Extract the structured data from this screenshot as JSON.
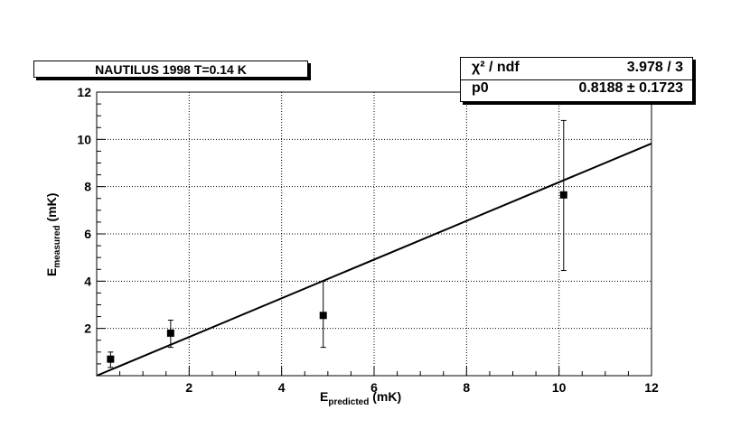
{
  "title": "NAUTILUS 1998 T=0.14 K",
  "stats": {
    "rows": [
      {
        "label": "χ² / ndf",
        "value": "3.978 / 3"
      },
      {
        "label": "p0",
        "value": "0.8188 ± 0.1723"
      }
    ]
  },
  "chart_data": {
    "type": "scatter",
    "title": "NAUTILUS 1998 T=0.14 K",
    "xlabel": {
      "main": "E",
      "sub": "predicted",
      "unit": " (mK)"
    },
    "ylabel": {
      "main": "E",
      "sub": "measured",
      "unit": " (mK)"
    },
    "xlim": [
      0,
      12
    ],
    "ylim": [
      0,
      12
    ],
    "xticks": [
      2,
      4,
      6,
      8,
      10,
      12
    ],
    "yticks": [
      2,
      4,
      6,
      8,
      10,
      12
    ],
    "grid": true,
    "series": [
      {
        "points": [
          {
            "x": 0.3,
            "y": 0.7,
            "err_low": 0.35,
            "err_high": 0.3
          },
          {
            "x": 1.6,
            "y": 1.8,
            "err_low": 0.6,
            "err_high": 0.55
          },
          {
            "x": 4.9,
            "y": 2.55,
            "err_low": 1.35,
            "err_high": 1.45
          },
          {
            "x": 10.1,
            "y": 7.65,
            "err_low": 3.2,
            "err_high": 3.15
          }
        ]
      }
    ],
    "fit": {
      "type": "linear",
      "slope": 0.8188,
      "intercept": 0,
      "x_range": [
        0,
        12
      ]
    }
  }
}
